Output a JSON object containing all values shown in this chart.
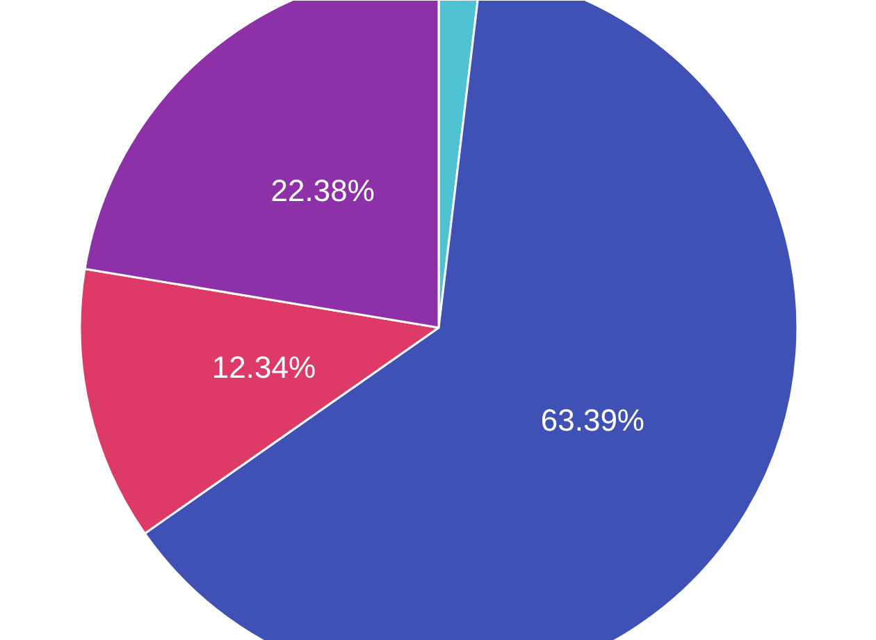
{
  "chart_data": {
    "type": "pie",
    "categories": [
      null,
      null,
      null,
      null
    ],
    "values": [
      1.89,
      63.39,
      12.34,
      22.38
    ],
    "colors": [
      "#4fc3d4",
      "#3f51b5",
      "#de3a68",
      "#8e30a8"
    ],
    "value_labels": [
      null,
      "63.39%",
      "12.34%",
      "22.38%"
    ]
  }
}
